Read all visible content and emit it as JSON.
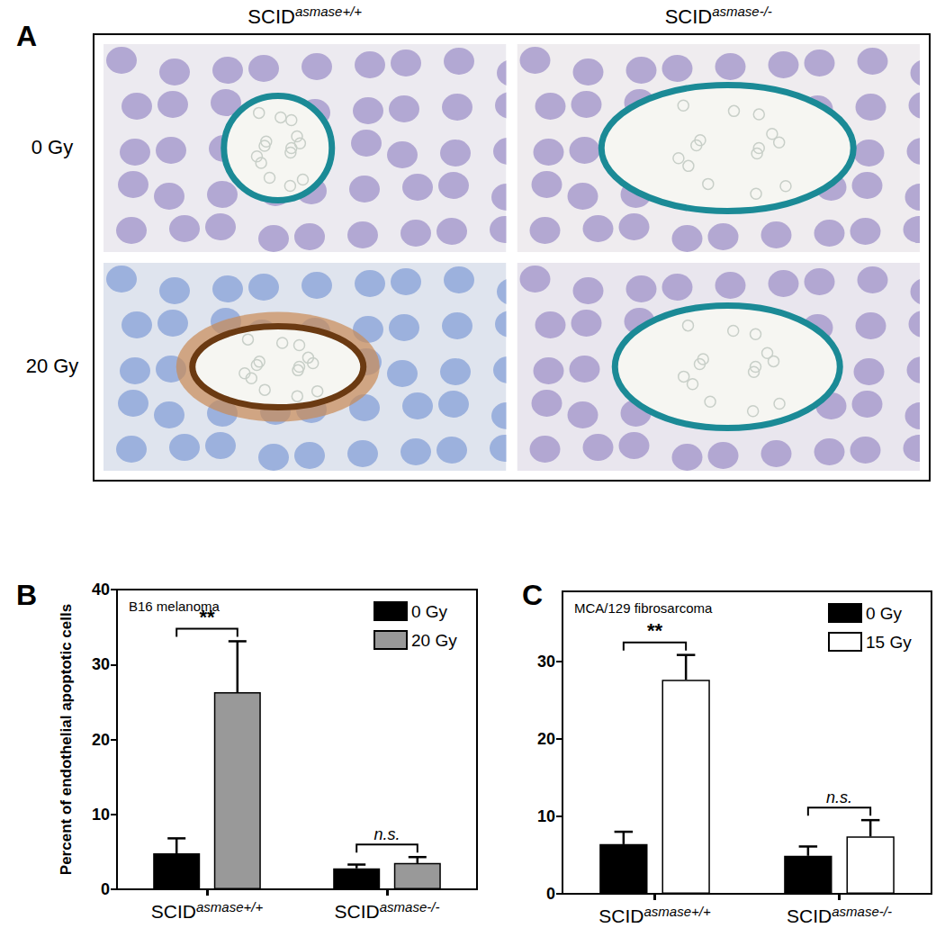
{
  "panel_a": {
    "panel": "A",
    "columns": [
      "SCIDasmase+/+",
      "SCIDasmase-/-"
    ],
    "rows": [
      "0 Gy",
      "20 Gy"
    ]
  },
  "chart_data": [
    {
      "type": "bar",
      "panel": "B",
      "title": "B16 melanoma",
      "categories": [
        "SCIDasmase+/+",
        "SCIDasmase-/-"
      ],
      "series": [
        {
          "name": "0 Gy",
          "color": "#000000",
          "values": [
            4.8,
            2.8
          ],
          "errors": [
            2.0,
            0.5
          ]
        },
        {
          "name": "20 Gy",
          "color": "#999999",
          "values": [
            26.3,
            3.5
          ],
          "errors": [
            6.8,
            0.8
          ]
        }
      ],
      "significance": [
        "**",
        "n.s."
      ],
      "ylabel": "Percent of endothelial apoptotic cells",
      "ylim": [
        0,
        40
      ],
      "yticks": [
        0,
        10,
        20,
        30,
        40
      ],
      "legend": "upper right"
    },
    {
      "type": "bar",
      "panel": "C",
      "title": "MCA/129 fibrosarcoma",
      "categories": [
        "SCIDasmase+/+",
        "SCIDasmase-/-"
      ],
      "series": [
        {
          "name": "0 Gy",
          "color": "#000000",
          "values": [
            6.4,
            4.9
          ],
          "errors": [
            1.6,
            1.2
          ]
        },
        {
          "name": "15 Gy",
          "color": "#ffffff",
          "values": [
            27.6,
            7.4
          ],
          "errors": [
            3.2,
            2.1
          ]
        }
      ],
      "significance": [
        "**",
        "n.s."
      ],
      "ylim": [
        0,
        39
      ],
      "yticks": [
        0,
        10,
        20,
        30
      ],
      "legend": "upper right"
    }
  ]
}
